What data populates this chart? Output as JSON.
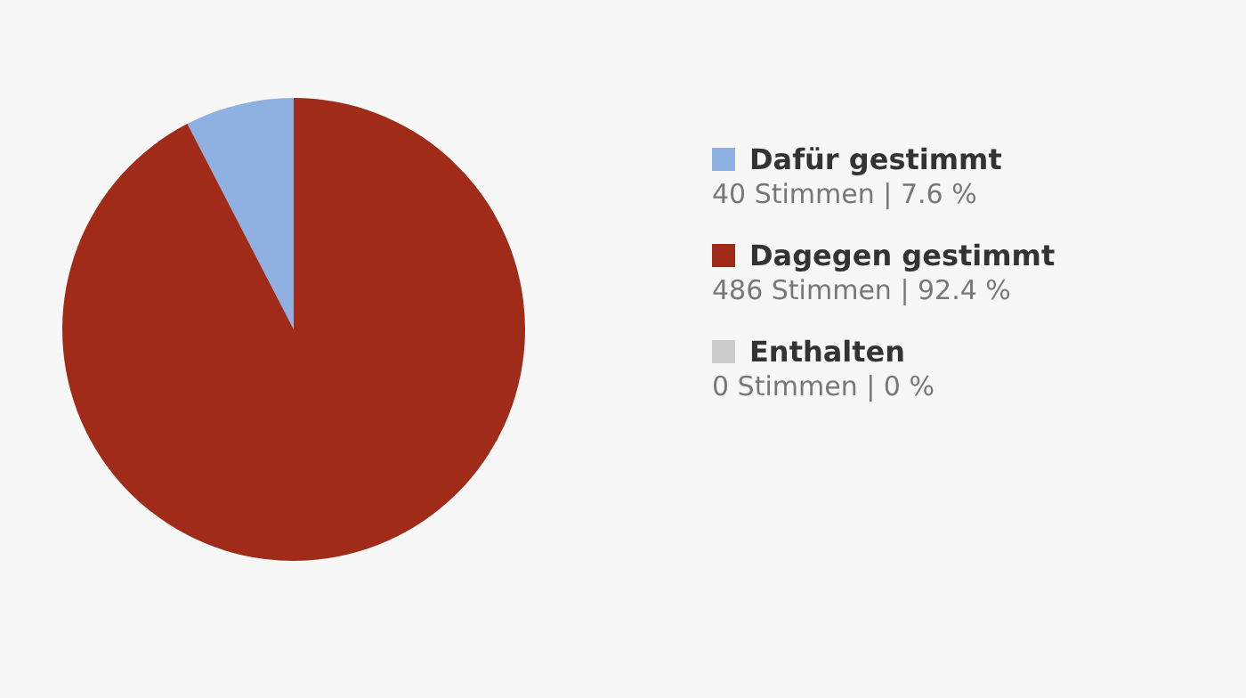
{
  "chart_data": {
    "type": "pie",
    "categories": [
      "Dafür gestimmt",
      "Dagegen gestimmt",
      "Enthalten"
    ],
    "values": [
      40,
      486,
      0
    ],
    "colors": [
      "#8fb1e2",
      "#a02b19",
      "#cccccc"
    ],
    "value_labels": [
      "40 Stimmen | 7.6 %",
      "486 Stimmen | 92.4 %",
      "0 Stimmen | 0 %"
    ],
    "legend": "right"
  }
}
